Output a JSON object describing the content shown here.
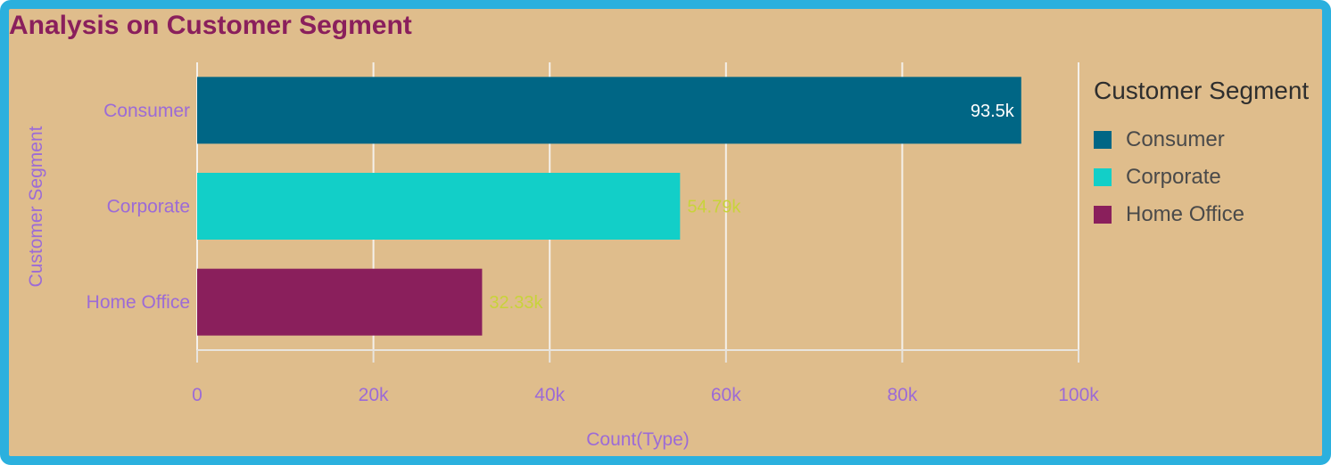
{
  "title": "Analysis on Customer Segment",
  "chart_data": {
    "type": "bar",
    "orientation": "horizontal",
    "title": "Analysis on Customer Segment",
    "xlabel": "Count(Type)",
    "ylabel": "Customer Segment",
    "categories": [
      "Consumer",
      "Corporate",
      "Home Office"
    ],
    "values": [
      93500,
      54790,
      32330
    ],
    "data_labels": [
      "93.5k",
      "54.79k",
      "32.33k"
    ],
    "colors": [
      "#006685",
      "#12CFC8",
      "#8A1F5C"
    ],
    "data_label_colors": [
      "#FFFFFF",
      "#C8D33A",
      "#C8D33A"
    ],
    "xlim": [
      0,
      100000
    ],
    "x_ticks": [
      0,
      20000,
      40000,
      60000,
      80000,
      100000
    ],
    "x_tick_labels": [
      "0",
      "20k",
      "40k",
      "60k",
      "80k",
      "100k"
    ],
    "grid": true,
    "legend": {
      "title": "Customer Segment",
      "position": "right",
      "items": [
        "Consumer",
        "Corporate",
        "Home Office"
      ]
    }
  }
}
